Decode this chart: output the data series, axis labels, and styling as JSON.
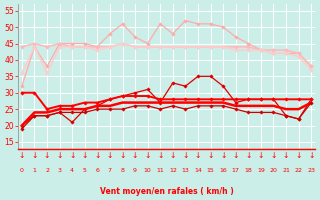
{
  "x": [
    0,
    1,
    2,
    3,
    4,
    5,
    6,
    7,
    8,
    9,
    10,
    11,
    12,
    13,
    14,
    15,
    16,
    17,
    18,
    19,
    20,
    21,
    22,
    23
  ],
  "series": [
    {
      "name": "rafales_irreg",
      "color": "#ffaaaa",
      "linewidth": 0.9,
      "marker": "D",
      "markersize": 1.8,
      "values": [
        32,
        44,
        38,
        45,
        45,
        45,
        44,
        48,
        51,
        47,
        45,
        51,
        48,
        52,
        51,
        51,
        50,
        47,
        45,
        43,
        42,
        42,
        42,
        38
      ]
    },
    {
      "name": "rafales_smooth1",
      "color": "#ffb8b8",
      "linewidth": 1.1,
      "marker": "D",
      "markersize": 1.8,
      "values": [
        44,
        45,
        44,
        45,
        44,
        44,
        44,
        44,
        45,
        44,
        44,
        44,
        44,
        44,
        44,
        44,
        44,
        44,
        44,
        43,
        43,
        43,
        42,
        38
      ]
    },
    {
      "name": "rafales_smooth2",
      "color": "#ffcccc",
      "linewidth": 1.1,
      "marker": "D",
      "markersize": 1.8,
      "values": [
        36,
        44,
        36,
        44,
        44,
        44,
        43,
        44,
        45,
        44,
        44,
        44,
        44,
        44,
        44,
        44,
        44,
        43,
        43,
        43,
        42,
        42,
        41,
        37
      ]
    },
    {
      "name": "vent_max_irreg",
      "color": "#dd0000",
      "linewidth": 0.9,
      "marker": "D",
      "markersize": 1.8,
      "values": [
        20,
        23,
        23,
        24,
        21,
        25,
        26,
        28,
        29,
        30,
        31,
        27,
        33,
        32,
        35,
        35,
        32,
        27,
        28,
        28,
        28,
        23,
        22,
        28
      ]
    },
    {
      "name": "vent_smooth1",
      "color": "#ff0000",
      "linewidth": 1.4,
      "marker": "D",
      "markersize": 1.8,
      "values": [
        30,
        30,
        25,
        26,
        26,
        27,
        27,
        28,
        29,
        29,
        29,
        28,
        28,
        28,
        28,
        28,
        28,
        28,
        28,
        28,
        28,
        28,
        28,
        28
      ]
    },
    {
      "name": "vent_smooth2",
      "color": "#ff0000",
      "linewidth": 1.8,
      "marker": null,
      "markersize": 0,
      "values": [
        20,
        24,
        24,
        25,
        25,
        25,
        26,
        26,
        27,
        27,
        27,
        27,
        27,
        27,
        27,
        27,
        27,
        26,
        26,
        26,
        26,
        25,
        25,
        27
      ]
    },
    {
      "name": "vent_min",
      "color": "#cc0000",
      "linewidth": 0.9,
      "marker": "D",
      "markersize": 1.8,
      "values": [
        19,
        23,
        23,
        24,
        24,
        24,
        25,
        25,
        25,
        26,
        26,
        25,
        26,
        25,
        26,
        26,
        26,
        25,
        24,
        24,
        24,
        23,
        22,
        27
      ]
    }
  ],
  "xlim": [
    -0.3,
    23.3
  ],
  "ylim": [
    13,
    57
  ],
  "yticks": [
    15,
    20,
    25,
    30,
    35,
    40,
    45,
    50,
    55
  ],
  "xticks": [
    0,
    1,
    2,
    3,
    4,
    5,
    6,
    7,
    8,
    9,
    10,
    11,
    12,
    13,
    14,
    15,
    16,
    17,
    18,
    19,
    20,
    21,
    22,
    23
  ],
  "xlabel": "Vent moyen/en rafales ( km/h )",
  "background_color": "#cceee8",
  "grid_color": "#aadddd",
  "tick_color": "#ff0000",
  "label_color": "#ff0000",
  "spine_color": "#888888"
}
